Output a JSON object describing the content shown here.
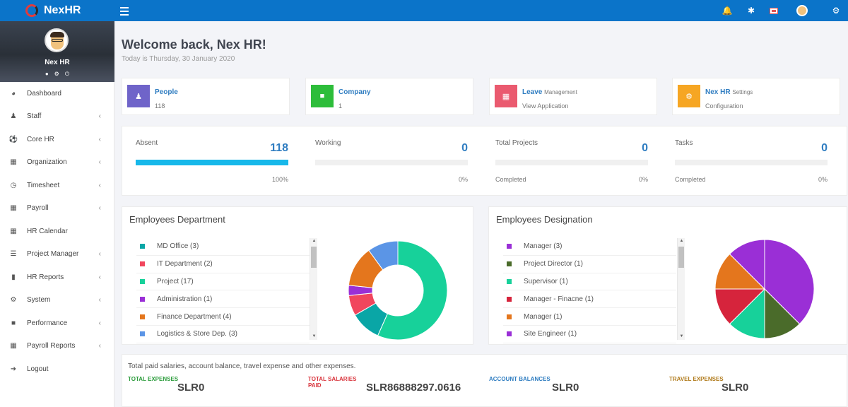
{
  "app": {
    "brand": "NexHR"
  },
  "colors": {
    "topbar": "#0b74c9",
    "accent": "#2f7dc1",
    "progress": "#17b8ea"
  },
  "sidebar": {
    "profile_name": "Nex HR",
    "items": [
      {
        "label": "Dashboard",
        "icon": "dashboard-icon",
        "submenu": false
      },
      {
        "label": "Staff",
        "icon": "user-icon",
        "submenu": true
      },
      {
        "label": "Core HR",
        "icon": "football-icon",
        "submenu": true
      },
      {
        "label": "Organization",
        "icon": "building-icon",
        "submenu": true
      },
      {
        "label": "Timesheet",
        "icon": "clock-icon",
        "submenu": true
      },
      {
        "label": "Payroll",
        "icon": "calculator-icon",
        "submenu": true
      },
      {
        "label": "HR Calendar",
        "icon": "calendar-icon",
        "submenu": false
      },
      {
        "label": "Project Manager",
        "icon": "tasks-icon",
        "submenu": true
      },
      {
        "label": "HR Reports",
        "icon": "bar-chart-icon",
        "submenu": true
      },
      {
        "label": "System",
        "icon": "gear-icon",
        "submenu": true
      },
      {
        "label": "Performance",
        "icon": "cube-icon",
        "submenu": true
      },
      {
        "label": "Payroll Reports",
        "icon": "calculator-icon",
        "submenu": true
      },
      {
        "label": "Logout",
        "icon": "sign-out-icon",
        "submenu": false
      }
    ]
  },
  "header": {
    "welcome": "Welcome back, Nex HR!",
    "today": "Today is Thursday, 30 January 2020"
  },
  "quick_cards": [
    {
      "title": "People",
      "subtitle": "",
      "value": "118",
      "color": "#6f64c9",
      "icon": "user-icon"
    },
    {
      "title": "Company",
      "subtitle": "",
      "value": "1",
      "color": "#2dbd3a",
      "icon": "lock-icon"
    },
    {
      "title": "Leave",
      "subtitle": "Management",
      "value": "View Application",
      "color": "#ea5a6f",
      "icon": "calendar-icon"
    },
    {
      "title": "Nex HR",
      "subtitle": "Settings",
      "value": "Configuration",
      "color": "#f6a623",
      "icon": "gear-icon"
    }
  ],
  "stats": [
    {
      "label": "Absent",
      "value": "118",
      "foot_left": "",
      "foot_right": "100%",
      "progress": 1.0
    },
    {
      "label": "Working",
      "value": "0",
      "foot_left": "",
      "foot_right": "0%",
      "progress": 0
    },
    {
      "label": "Total Projects",
      "value": "0",
      "foot_left": "Completed",
      "foot_right": "0%",
      "progress": 0
    },
    {
      "label": "Tasks",
      "value": "0",
      "foot_left": "Completed",
      "foot_right": "0%",
      "progress": 0
    }
  ],
  "department": {
    "title": "Employees Department",
    "legend": [
      {
        "label": "MD Office (3)",
        "color": "#0aa6a6"
      },
      {
        "label": "IT Department (2)",
        "color": "#f1465d"
      },
      {
        "label": "Project (17)",
        "color": "#17d19a"
      },
      {
        "label": "Administration (1)",
        "color": "#9a2fd6"
      },
      {
        "label": "Finance Department (4)",
        "color": "#e4761d"
      },
      {
        "label": "Logistics & Store Dep. (3)",
        "color": "#5b95e6"
      }
    ]
  },
  "designation": {
    "title": "Employees Designation",
    "legend": [
      {
        "label": "Manager (3)",
        "color": "#9a2fd6"
      },
      {
        "label": "Project Director (1)",
        "color": "#4a6b2a"
      },
      {
        "label": "Supervisor (1)",
        "color": "#17d19a"
      },
      {
        "label": "Manager - Finacne (1)",
        "color": "#d6243c"
      },
      {
        "label": "Manager (1)",
        "color": "#e4761d"
      },
      {
        "label": "Site Engineer (1)",
        "color": "#9a2fd6"
      }
    ]
  },
  "expenses": {
    "intro": "Total paid salaries, account balance, travel expense and other expenses.",
    "items": [
      {
        "label_line1": "TOTAL EXPENSES",
        "label_line2": "",
        "value": "SLR0",
        "color": "#2c9c3c"
      },
      {
        "label_line1": "TOTAL SALARIES",
        "label_line2": "PAID",
        "value": "SLR86888297.0616",
        "color": "#d9363e"
      },
      {
        "label_line1": "ACCOUNT BALANCES",
        "label_line2": "",
        "value": "SLR0",
        "color": "#2f7dc1"
      },
      {
        "label_line1": "TRAVEL EXPENSES",
        "label_line2": "",
        "value": "SLR0",
        "color": "#b07a1a"
      }
    ]
  },
  "chart_data": [
    {
      "type": "pie",
      "variant": "donut",
      "categories": [
        "Project",
        "MD Office",
        "IT Department",
        "Administration",
        "Finance Department",
        "Logistics & Store Dep."
      ],
      "values": [
        17,
        3,
        2,
        1,
        4,
        3
      ],
      "colors": [
        "#17d19a",
        "#0aa6a6",
        "#f1465d",
        "#9a2fd6",
        "#e4761d",
        "#5b95e6"
      ]
    },
    {
      "type": "pie",
      "categories": [
        "Manager",
        "Project Director",
        "Supervisor",
        "Manager - Finacne",
        "Manager",
        "Site Engineer"
      ],
      "values": [
        3,
        1,
        1,
        1,
        1,
        1
      ],
      "colors": [
        "#9a2fd6",
        "#4a6b2a",
        "#17d19a",
        "#d6243c",
        "#e4761d",
        "#9a2fd6"
      ]
    }
  ]
}
